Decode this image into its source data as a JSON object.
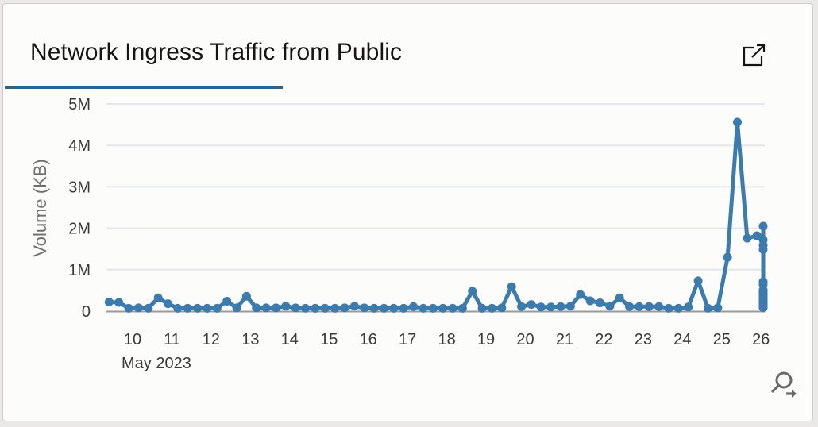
{
  "card": {
    "title": "Network Ingress Traffic from Public",
    "actions": [
      {
        "name": "open-in-new-window",
        "icon": "external-link-icon"
      },
      {
        "name": "zoom-chart",
        "icon": "zoom-magnifier-arrow-icon"
      }
    ]
  },
  "chart_data": {
    "type": "line",
    "title": "Network Ingress Traffic from Public",
    "xlabel": "",
    "x_sublabel": "May 2023",
    "ylabel": "Volume (KB)",
    "ylim": [
      0,
      5000000
    ],
    "y_ticks": [
      "0",
      "1M",
      "2M",
      "3M",
      "4M",
      "5M"
    ],
    "x_ticks": [
      "10",
      "11",
      "12",
      "13",
      "14",
      "15",
      "16",
      "17",
      "18",
      "19",
      "20",
      "21",
      "22",
      "23",
      "24",
      "25",
      "26"
    ],
    "x_range_days": [
      9.4,
      26.0
    ],
    "grid": true,
    "legend": null,
    "series_color": "#3d7bad",
    "series": [
      {
        "name": "Volume (KB)",
        "x_day_start": 9.4,
        "x_step_days": 0.25,
        "values": [
          220000,
          210000,
          70000,
          80000,
          70000,
          320000,
          180000,
          70000,
          70000,
          70000,
          70000,
          70000,
          240000,
          80000,
          360000,
          80000,
          80000,
          80000,
          120000,
          80000,
          70000,
          70000,
          70000,
          70000,
          80000,
          120000,
          80000,
          70000,
          70000,
          70000,
          70000,
          110000,
          70000,
          70000,
          70000,
          70000,
          70000,
          480000,
          70000,
          70000,
          80000,
          590000,
          110000,
          160000,
          100000,
          100000,
          110000,
          120000,
          400000,
          250000,
          200000,
          120000,
          320000,
          110000,
          110000,
          110000,
          110000,
          70000,
          70000,
          100000,
          730000,
          70000,
          80000,
          1300000,
          4560000,
          1760000,
          1820000,
          1720000,
          2050000,
          1590000,
          100000,
          100000,
          100000,
          110000,
          250000,
          240000,
          380000,
          280000,
          260000,
          430000,
          430000,
          280000,
          250000,
          260000,
          370000,
          290000,
          280000,
          280000,
          240000,
          250000,
          270000,
          270000,
          260000,
          280000,
          1490000,
          280000,
          260000,
          480000,
          490000,
          710000,
          640000,
          240000,
          510000,
          170000,
          160000,
          110000,
          100000,
          360000,
          110000,
          110000,
          190000,
          180000,
          110000,
          110000,
          170000,
          430000,
          240000,
          90000,
          90000,
          230000,
          90000,
          100000,
          90000,
          210000
        ]
      }
    ]
  }
}
